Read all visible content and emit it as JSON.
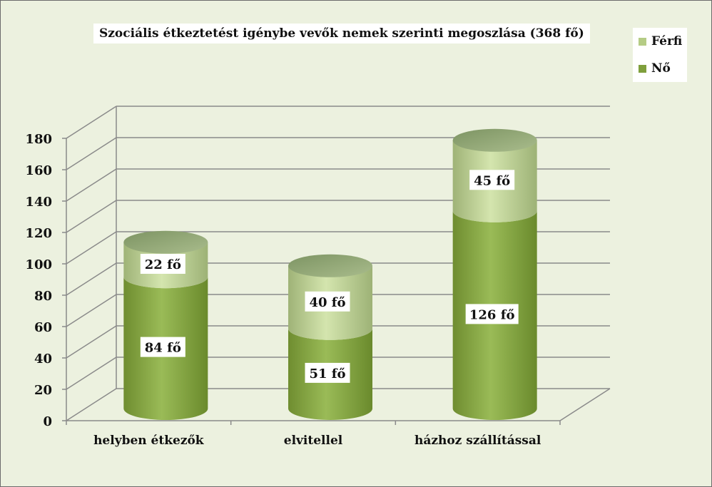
{
  "chart_data": {
    "type": "bar",
    "stacked": true,
    "style": "3d-cylinder",
    "title": "Szociális étkeztetést igénybe vevők nemek szerinti megoszlása (368 fő)",
    "categories": [
      "helyben étkezők",
      "elvitellel",
      "házhoz szállítással"
    ],
    "series": [
      {
        "name": "Nő",
        "values": [
          84,
          51,
          126
        ],
        "labels": [
          "84 fő",
          "51 fő",
          "126 fő"
        ],
        "color": "#7f9f3c"
      },
      {
        "name": "Férfi",
        "values": [
          22,
          40,
          45
        ],
        "labels": [
          "22 fő",
          "40 fő",
          "45 fő"
        ],
        "color": "#b5cc85"
      }
    ],
    "ylim": [
      0,
      180
    ],
    "yticks": [
      "0",
      "20",
      "40",
      "60",
      "80",
      "100",
      "120",
      "140",
      "160",
      "180"
    ],
    "grid": true,
    "legend": "top-right"
  }
}
